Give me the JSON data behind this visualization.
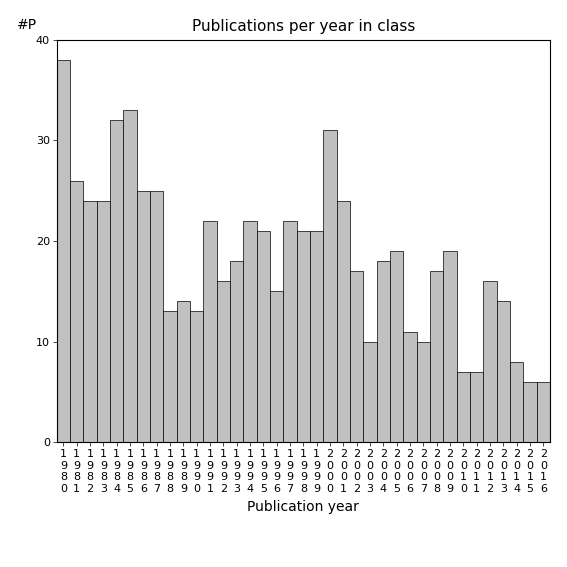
{
  "title": "Publications per year in class",
  "xlabel": "Publication year",
  "ylabel": "#P",
  "years": [
    1980,
    1981,
    1982,
    1983,
    1984,
    1985,
    1986,
    1987,
    1988,
    1989,
    1990,
    1991,
    1992,
    1993,
    1994,
    1995,
    1996,
    1997,
    1998,
    1999,
    2000,
    2001,
    2002,
    2003,
    2004,
    2005,
    2006,
    2007,
    2008,
    2009,
    2010,
    2011,
    2012,
    2013,
    2014,
    2015,
    2016
  ],
  "values": [
    38,
    26,
    24,
    24,
    32,
    33,
    25,
    25,
    13,
    14,
    13,
    22,
    16,
    18,
    22,
    21,
    15,
    22,
    21,
    21,
    31,
    24,
    17,
    10,
    18,
    19,
    11,
    10,
    17,
    19,
    7,
    7,
    16,
    14,
    8,
    6,
    6
  ],
  "bar_color": "#c0c0c0",
  "bar_edge_color": "#000000",
  "ylim": [
    0,
    40
  ],
  "yticks": [
    0,
    10,
    20,
    30,
    40
  ],
  "background_color": "#ffffff",
  "title_fontsize": 11,
  "axis_fontsize": 10,
  "tick_fontsize": 8
}
